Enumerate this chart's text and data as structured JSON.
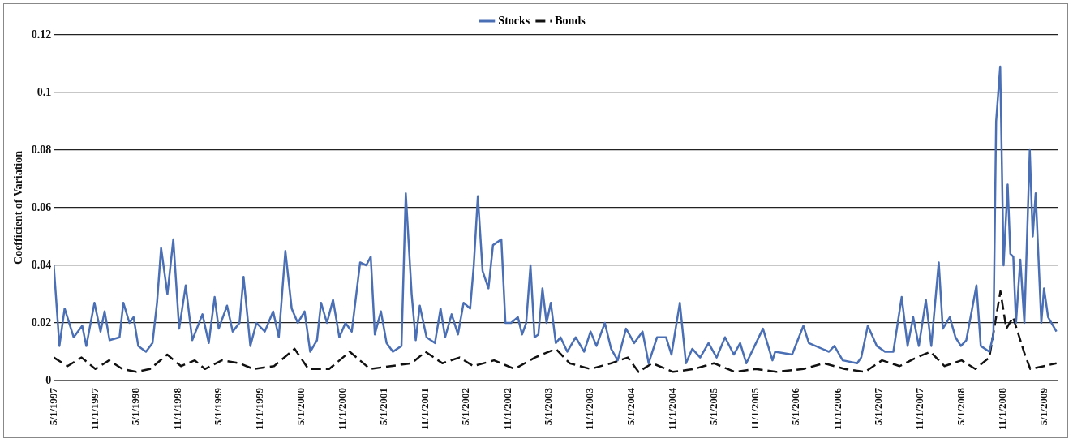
{
  "chart_data": {
    "type": "line",
    "ylabel": "Coefficient of Variation",
    "legend": "top",
    "grid": "y",
    "marker": "none",
    "xlim": [
      "1997-05-01",
      "2009-06-30"
    ],
    "xticks": [
      {
        "value": "1997-05-01",
        "label": "5/1/1997"
      },
      {
        "value": "1997-11-01",
        "label": "11/1/1997"
      },
      {
        "value": "1998-05-01",
        "label": "5/1/1998"
      },
      {
        "value": "1998-11-01",
        "label": "11/1/1998"
      },
      {
        "value": "1999-05-01",
        "label": "5/1/1999"
      },
      {
        "value": "1999-11-01",
        "label": "11/1/1999"
      },
      {
        "value": "2000-05-01",
        "label": "5/1/2000"
      },
      {
        "value": "2000-11-01",
        "label": "11/1/2000"
      },
      {
        "value": "2001-05-01",
        "label": "5/1/2001"
      },
      {
        "value": "2001-11-01",
        "label": "11/1/2001"
      },
      {
        "value": "2002-05-01",
        "label": "5/1/2002"
      },
      {
        "value": "2002-11-01",
        "label": "11/1/2002"
      },
      {
        "value": "2003-05-01",
        "label": "5/1/2003"
      },
      {
        "value": "2003-11-01",
        "label": "11/1/2003"
      },
      {
        "value": "2004-05-01",
        "label": "5/1/2004"
      },
      {
        "value": "2004-11-01",
        "label": "11/1/2004"
      },
      {
        "value": "2005-05-01",
        "label": "5/1/2005"
      },
      {
        "value": "2005-11-01",
        "label": "11/1/2005"
      },
      {
        "value": "2006-05-01",
        "label": "5/1/2006"
      },
      {
        "value": "2006-11-01",
        "label": "11/1/2006"
      },
      {
        "value": "2007-05-01",
        "label": "5/1/2007"
      },
      {
        "value": "2007-11-01",
        "label": "11/1/2007"
      },
      {
        "value": "2008-05-01",
        "label": "5/1/2008"
      },
      {
        "value": "2008-11-01",
        "label": "11/1/2008"
      },
      {
        "value": "2009-05-01",
        "label": "5/1/2009"
      }
    ],
    "ylim": [
      0,
      0.12
    ],
    "yticks": [
      0,
      0.02,
      0.04,
      0.06,
      0.08,
      0.1,
      0.12
    ],
    "series": [
      {
        "name": "Stocks",
        "color": "#4a6fb5",
        "line_style": "solid",
        "x": [
          "1997-05-01",
          "1997-05-26",
          "1997-06-18",
          "1997-07-28",
          "1997-09-04",
          "1997-09-22",
          "1997-10-28",
          "1997-11-24",
          "1997-12-12",
          "1998-01-03",
          "1998-02-16",
          "1998-03-05",
          "1998-04-01",
          "1998-04-19",
          "1998-05-10",
          "1998-06-13",
          "1998-07-12",
          "1998-08-01",
          "1998-08-19",
          "1998-09-16",
          "1998-10-12",
          "1998-11-07",
          "1998-12-06",
          "1999-01-04",
          "1999-02-18",
          "1999-03-18",
          "1999-04-13",
          "1999-05-01",
          "1999-06-07",
          "1999-07-02",
          "1999-08-01",
          "1999-08-19",
          "1999-09-18",
          "1999-10-15",
          "1999-11-21",
          "1999-12-28",
          "2000-01-22",
          "2000-02-20",
          "2000-03-19",
          "2000-04-15",
          "2000-05-15",
          "2000-06-09",
          "2000-07-09",
          "2000-07-27",
          "2000-08-22",
          "2000-09-18",
          "2000-10-16",
          "2000-11-12",
          "2000-12-10",
          "2001-01-16",
          "2001-02-12",
          "2001-03-04",
          "2001-03-22",
          "2001-04-18",
          "2001-05-13",
          "2001-06-10",
          "2001-07-18",
          "2001-08-06",
          "2001-09-01",
          "2001-09-19",
          "2001-10-07",
          "2001-11-06",
          "2001-12-13",
          "2002-01-07",
          "2002-01-27",
          "2002-02-25",
          "2002-03-25",
          "2002-04-19",
          "2002-05-18",
          "2002-06-03",
          "2002-06-21",
          "2002-07-12",
          "2002-08-07",
          "2002-08-27",
          "2002-10-03",
          "2002-10-21",
          "2002-11-15",
          "2002-12-15",
          "2003-01-03",
          "2003-01-21",
          "2003-02-09",
          "2003-02-27",
          "2003-03-16",
          "2003-04-03",
          "2003-04-21",
          "2003-05-10",
          "2003-06-01",
          "2003-06-22",
          "2003-07-22",
          "2003-08-28",
          "2003-10-04",
          "2003-11-02",
          "2003-11-28",
          "2004-01-04",
          "2004-02-01",
          "2004-03-01",
          "2004-04-07",
          "2004-05-13",
          "2004-06-19",
          "2004-07-16",
          "2004-08-22",
          "2004-10-01",
          "2004-10-25",
          "2004-12-01",
          "2004-12-28",
          "2005-01-25",
          "2005-03-01",
          "2005-04-07",
          "2005-05-13",
          "2005-06-19",
          "2005-07-28",
          "2005-08-25",
          "2005-09-21",
          "2005-10-28",
          "2005-12-04",
          "2006-01-15",
          "2006-01-27",
          "2006-04-12",
          "2006-06-01",
          "2006-06-25",
          "2006-09-22",
          "2006-10-16",
          "2006-11-22",
          "2007-01-25",
          "2007-02-12",
          "2007-03-13",
          "2007-04-22",
          "2007-05-28",
          "2007-07-04",
          "2007-08-10",
          "2007-09-05",
          "2007-09-30",
          "2007-10-25",
          "2007-11-25",
          "2007-12-19",
          "2008-01-21",
          "2008-02-08",
          "2008-03-10",
          "2008-04-04",
          "2008-04-28",
          "2008-05-22",
          "2008-07-06",
          "2008-07-25",
          "2008-09-01",
          "2008-09-19",
          "2008-10-01",
          "2008-10-19",
          "2008-11-03",
          "2008-11-21",
          "2008-12-03",
          "2008-12-16",
          "2008-12-28",
          "2009-01-16",
          "2009-02-03",
          "2009-02-27",
          "2009-03-12",
          "2009-03-25",
          "2009-04-19",
          "2009-05-01",
          "2009-05-19",
          "2009-06-25"
        ],
        "values": [
          0.04,
          0.012,
          0.025,
          0.015,
          0.019,
          0.012,
          0.027,
          0.017,
          0.024,
          0.014,
          0.015,
          0.027,
          0.02,
          0.022,
          0.012,
          0.01,
          0.013,
          0.027,
          0.046,
          0.03,
          0.049,
          0.018,
          0.033,
          0.014,
          0.023,
          0.013,
          0.029,
          0.018,
          0.026,
          0.017,
          0.02,
          0.036,
          0.012,
          0.02,
          0.017,
          0.024,
          0.015,
          0.045,
          0.025,
          0.02,
          0.024,
          0.01,
          0.014,
          0.027,
          0.02,
          0.028,
          0.015,
          0.02,
          0.017,
          0.041,
          0.04,
          0.043,
          0.016,
          0.024,
          0.013,
          0.01,
          0.012,
          0.065,
          0.03,
          0.014,
          0.026,
          0.015,
          0.013,
          0.025,
          0.015,
          0.023,
          0.016,
          0.027,
          0.025,
          0.04,
          0.064,
          0.038,
          0.032,
          0.047,
          0.049,
          0.02,
          0.02,
          0.022,
          0.016,
          0.02,
          0.04,
          0.015,
          0.016,
          0.032,
          0.02,
          0.027,
          0.013,
          0.015,
          0.01,
          0.015,
          0.01,
          0.017,
          0.012,
          0.02,
          0.011,
          0.007,
          0.018,
          0.013,
          0.017,
          0.006,
          0.015,
          0.015,
          0.009,
          0.027,
          0.006,
          0.011,
          0.008,
          0.013,
          0.008,
          0.015,
          0.009,
          0.013,
          0.006,
          0.012,
          0.018,
          0.007,
          0.01,
          0.009,
          0.019,
          0.013,
          0.01,
          0.012,
          0.007,
          0.006,
          0.008,
          0.019,
          0.012,
          0.01,
          0.01,
          0.029,
          0.012,
          0.022,
          0.012,
          0.028,
          0.012,
          0.041,
          0.018,
          0.022,
          0.015,
          0.012,
          0.014,
          0.033,
          0.012,
          0.01,
          0.016,
          0.09,
          0.109,
          0.04,
          0.068,
          0.044,
          0.043,
          0.02,
          0.042,
          0.02,
          0.08,
          0.05,
          0.065,
          0.02,
          0.032,
          0.022,
          0.017
        ]
      },
      {
        "name": "Bonds",
        "color": "#111111",
        "line_style": "dashed",
        "x": [
          "1997-05-01",
          "1997-07-01",
          "1997-09-01",
          "1997-11-01",
          "1998-01-01",
          "1998-03-01",
          "1998-05-01",
          "1998-07-01",
          "1998-09-15",
          "1998-11-15",
          "1999-01-15",
          "1999-03-01",
          "1999-05-15",
          "1999-08-01",
          "1999-10-01",
          "2000-01-01",
          "2000-04-01",
          "2000-06-01",
          "2000-09-01",
          "2000-12-01",
          "2001-03-01",
          "2001-06-01",
          "2001-09-01",
          "2001-11-01",
          "2002-01-15",
          "2002-04-01",
          "2002-06-01",
          "2002-09-01",
          "2002-12-01",
          "2003-03-01",
          "2003-06-01",
          "2003-08-01",
          "2003-11-01",
          "2004-02-01",
          "2004-04-15",
          "2004-06-01",
          "2004-08-01",
          "2004-11-01",
          "2005-02-01",
          "2005-05-01",
          "2005-08-01",
          "2005-11-01",
          "2006-02-01",
          "2006-06-01",
          "2006-09-01",
          "2006-12-01",
          "2007-03-01",
          "2007-05-15",
          "2007-08-01",
          "2007-10-15",
          "2007-12-15",
          "2008-02-15",
          "2008-05-01",
          "2008-07-01",
          "2008-09-01",
          "2008-10-20",
          "2008-11-15",
          "2008-12-15",
          "2009-02-01",
          "2009-03-01",
          "2009-05-01",
          "2009-06-25"
        ],
        "values": [
          0.008,
          0.005,
          0.008,
          0.004,
          0.007,
          0.004,
          0.003,
          0.004,
          0.009,
          0.005,
          0.007,
          0.004,
          0.007,
          0.006,
          0.004,
          0.005,
          0.011,
          0.004,
          0.004,
          0.01,
          0.004,
          0.005,
          0.006,
          0.01,
          0.006,
          0.008,
          0.005,
          0.007,
          0.004,
          0.008,
          0.011,
          0.006,
          0.004,
          0.006,
          0.008,
          0.003,
          0.006,
          0.003,
          0.004,
          0.006,
          0.003,
          0.004,
          0.003,
          0.004,
          0.006,
          0.004,
          0.003,
          0.007,
          0.005,
          0.008,
          0.01,
          0.005,
          0.007,
          0.004,
          0.008,
          0.031,
          0.018,
          0.022,
          0.01,
          0.004,
          0.005,
          0.006
        ]
      }
    ]
  }
}
